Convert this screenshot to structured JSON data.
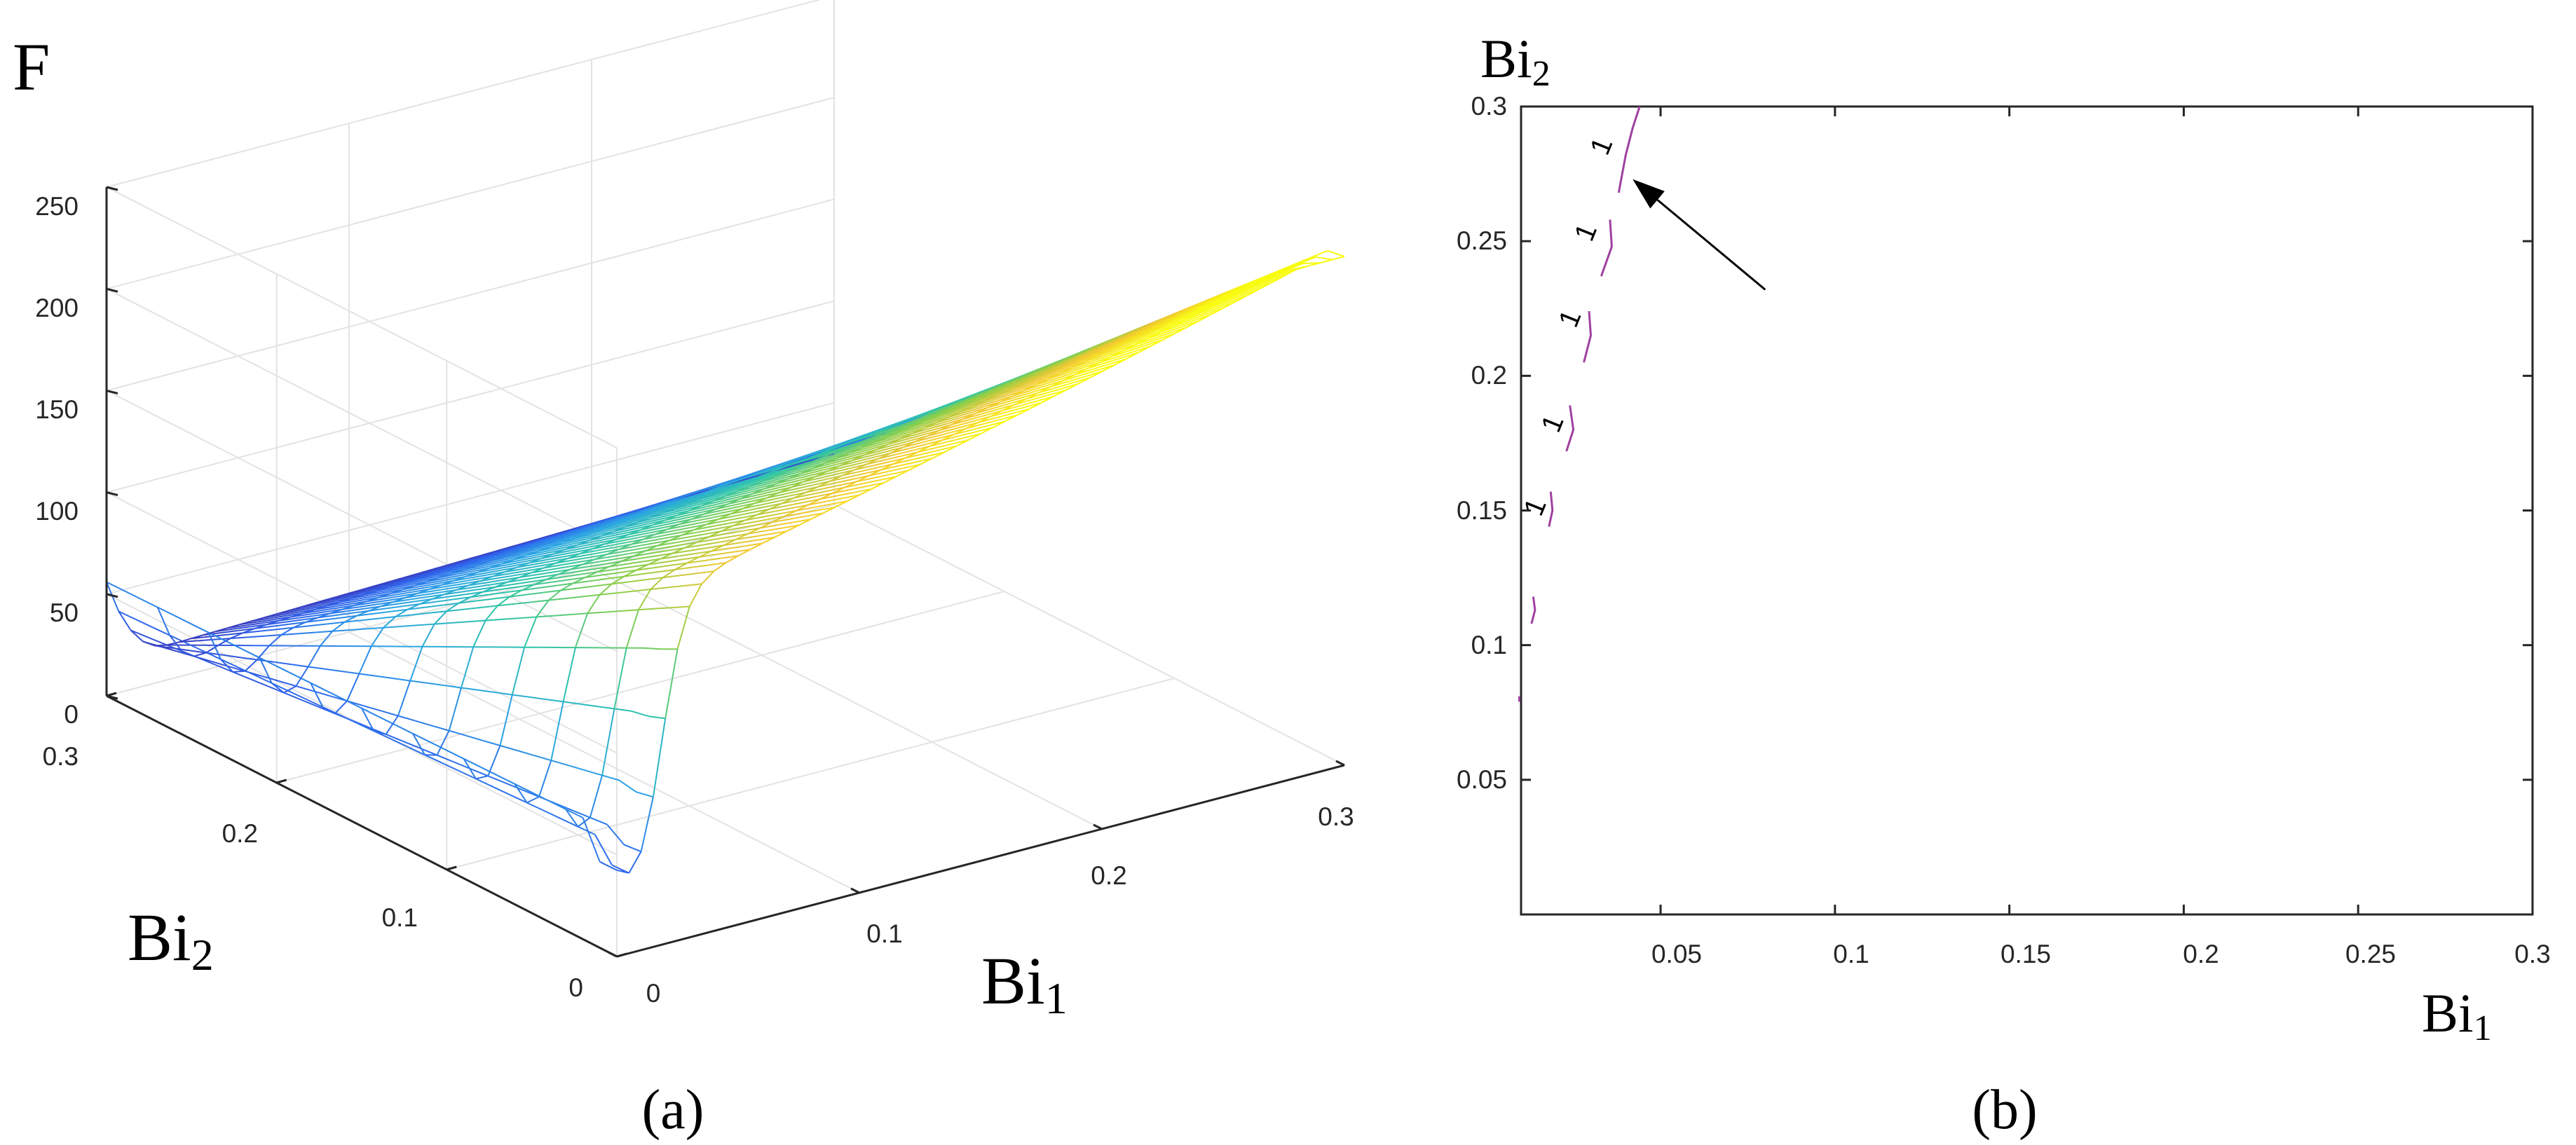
{
  "chart_data": [
    {
      "type": "surface",
      "panel_label": "(a)",
      "zlabel": "F",
      "xlabel": "Bi",
      "xlabel_sub": "1",
      "ylabel": "Bi",
      "ylabel_sub": "2",
      "xlim": [
        0,
        0.3
      ],
      "ylim": [
        0,
        0.3
      ],
      "zlim": [
        0,
        250
      ],
      "x_ticks": [
        "0",
        "0.1",
        "0.2",
        "0.3"
      ],
      "y_ticks": [
        "0",
        "0.1",
        "0.2",
        "0.3"
      ],
      "z_ticks": [
        "0",
        "50",
        "100",
        "150",
        "200",
        "250"
      ],
      "grid": true,
      "colormap": [
        "#3e26a8",
        "#2f66ee",
        "#2ba6e3",
        "#2ec5a8",
        "#89cf4a",
        "#f2c831",
        "#f9fb0e"
      ],
      "corner_values": [
        {
          "Bi1": 0.3,
          "Bi2": 0.0,
          "F": 205
        },
        {
          "Bi1": 0.3,
          "Bi2": 0.3,
          "F": 0
        },
        {
          "Bi1": 0.0,
          "Bi2": 0.3,
          "F": 55
        },
        {
          "Bi1": 0.0,
          "Bi2": 0.0,
          "F": 40
        }
      ]
    },
    {
      "type": "contour",
      "panel_label": "(b)",
      "xlabel": "Bi",
      "xlabel_sub": "1",
      "ylabel": "Bi",
      "ylabel_sub": "2",
      "xlim": [
        0.01,
        0.3
      ],
      "ylim": [
        0,
        0.3
      ],
      "x_ticks": [
        "0.05",
        "0.1",
        "0.15",
        "0.2",
        "0.25",
        "0.3"
      ],
      "y_ticks": [
        "0.05",
        "0.1",
        "0.15",
        "0.2",
        "0.25",
        "0.3"
      ],
      "contour_level": "1",
      "line_color": "#a040a0",
      "segments": [
        {
          "Bi1": [
            0.0095,
            0.0095
          ],
          "Bi2": [
            0.079,
            0.081
          ]
        },
        {
          "Bi1": [
            0.013,
            0.014,
            0.0135
          ],
          "Bi2": [
            0.108,
            0.113,
            0.118
          ]
        },
        {
          "Bi1": [
            0.018,
            0.019,
            0.0185
          ],
          "Bi2": [
            0.144,
            0.15,
            0.157
          ]
        },
        {
          "Bi1": [
            0.023,
            0.025,
            0.024
          ],
          "Bi2": [
            0.172,
            0.18,
            0.189
          ]
        },
        {
          "Bi1": [
            0.028,
            0.03,
            0.0295
          ],
          "Bi2": [
            0.205,
            0.215,
            0.224
          ]
        },
        {
          "Bi1": [
            0.033,
            0.036,
            0.0355
          ],
          "Bi2": [
            0.237,
            0.248,
            0.258
          ]
        },
        {
          "Bi1": [
            0.038,
            0.04,
            0.042,
            0.044
          ],
          "Bi2": [
            0.268,
            0.282,
            0.292,
            0.3
          ]
        }
      ],
      "label_positions": [
        {
          "Bi1": 0.0165,
          "Bi2": 0.15
        },
        {
          "Bi1": 0.0215,
          "Bi2": 0.181
        },
        {
          "Bi1": 0.0265,
          "Bi2": 0.22
        },
        {
          "Bi1": 0.031,
          "Bi2": 0.252
        },
        {
          "Bi1": 0.0355,
          "Bi2": 0.284
        }
      ],
      "arrow": {
        "from": {
          "Bi1": 0.08,
          "Bi2": 0.232
        },
        "to": {
          "Bi1": 0.042,
          "Bi2": 0.273
        }
      }
    }
  ]
}
